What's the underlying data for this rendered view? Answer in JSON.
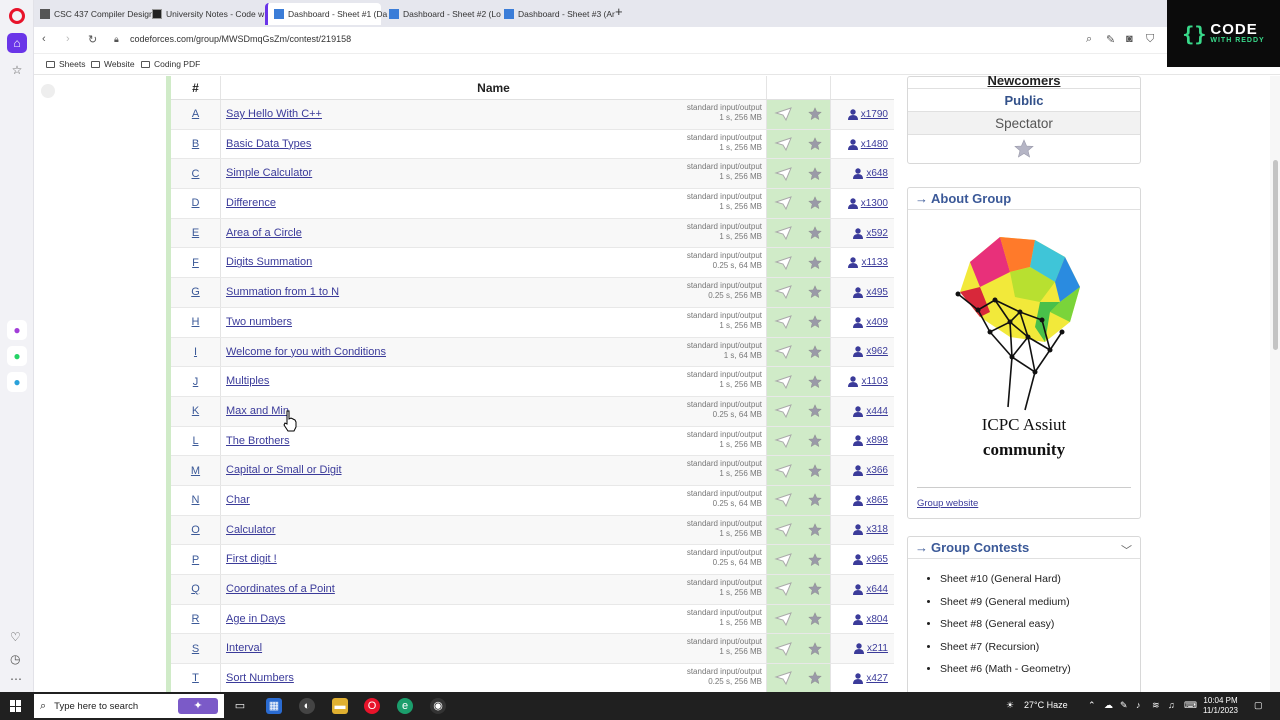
{
  "browser": {
    "tabs": [
      {
        "label": "CSC 437 Compiler Design",
        "color": "#555555"
      },
      {
        "label": "University Notes - Code w",
        "color": "#222222"
      },
      {
        "label": "Dashboard - Sheet #1 (Da",
        "color": "#3b7dd8"
      },
      {
        "label": "Dashboard - Sheet #2 (Lo",
        "color": "#3b7dd8"
      },
      {
        "label": "Dashboard - Sheet #3 (Ar",
        "color": "#3b7dd8"
      }
    ],
    "url": "codeforces.com/group/MWSDmqGsZm/contest/219158",
    "bookmarks": [
      "Sheets",
      "Website",
      "Coding PDF"
    ]
  },
  "logo": {
    "line1": "CODE",
    "line2": "WITH REDDY"
  },
  "table": {
    "col_id": "#",
    "col_name": "Name",
    "problems": [
      {
        "id": "A",
        "name": "Say Hello With C++",
        "io": "standard input/output",
        "limits": "1 s, 256 MB",
        "count": "x1790"
      },
      {
        "id": "B",
        "name": "Basic Data Types",
        "io": "standard input/output",
        "limits": "1 s, 256 MB",
        "count": "x1480"
      },
      {
        "id": "C",
        "name": "Simple Calculator",
        "io": "standard input/output",
        "limits": "1 s, 256 MB",
        "count": "x648"
      },
      {
        "id": "D",
        "name": "Difference",
        "io": "standard input/output",
        "limits": "1 s, 256 MB",
        "count": "x1300"
      },
      {
        "id": "E",
        "name": "Area of a Circle",
        "io": "standard input/output",
        "limits": "1 s, 256 MB",
        "count": "x592"
      },
      {
        "id": "F",
        "name": "Digits Summation",
        "io": "standard input/output",
        "limits": "0.25 s, 64 MB",
        "count": "x1133"
      },
      {
        "id": "G",
        "name": "Summation from 1 to N",
        "io": "standard input/output",
        "limits": "0.25 s, 256 MB",
        "count": "x495"
      },
      {
        "id": "H",
        "name": "Two numbers",
        "io": "standard input/output",
        "limits": "1 s, 256 MB",
        "count": "x409"
      },
      {
        "id": "I",
        "name": "Welcome for you with Conditions",
        "io": "standard input/output",
        "limits": "1 s, 64 MB",
        "count": "x962"
      },
      {
        "id": "J",
        "name": "Multiples",
        "io": "standard input/output",
        "limits": "1 s, 256 MB",
        "count": "x1103"
      },
      {
        "id": "K",
        "name": "Max and Min",
        "io": "standard input/output",
        "limits": "0.25 s, 64 MB",
        "count": "x444"
      },
      {
        "id": "L",
        "name": "The Brothers",
        "io": "standard input/output",
        "limits": "1 s, 256 MB",
        "count": "x898"
      },
      {
        "id": "M",
        "name": "Capital or Small or Digit",
        "io": "standard input/output",
        "limits": "1 s, 256 MB",
        "count": "x366"
      },
      {
        "id": "N",
        "name": "Char",
        "io": "standard input/output",
        "limits": "0.25 s, 64 MB",
        "count": "x865"
      },
      {
        "id": "O",
        "name": "Calculator",
        "io": "standard input/output",
        "limits": "1 s, 256 MB",
        "count": "x318"
      },
      {
        "id": "P",
        "name": "First digit !",
        "io": "standard input/output",
        "limits": "0.25 s, 64 MB",
        "count": "x965"
      },
      {
        "id": "Q",
        "name": "Coordinates of a Point",
        "io": "standard input/output",
        "limits": "1 s, 256 MB",
        "count": "x644"
      },
      {
        "id": "R",
        "name": "Age in Days",
        "io": "standard input/output",
        "limits": "1 s, 256 MB",
        "count": "x804"
      },
      {
        "id": "S",
        "name": "Interval",
        "io": "standard input/output",
        "limits": "1 s, 256 MB",
        "count": "x211"
      },
      {
        "id": "T",
        "name": "Sort Numbers",
        "io": "standard input/output",
        "limits": "0.25 s, 256 MB",
        "count": "x427"
      }
    ]
  },
  "sidebar": {
    "registration": {
      "newcomers": "Newcomers",
      "public": "Public",
      "spectator": "Spectator"
    },
    "about": {
      "title": "About Group",
      "caption_line1": "ICPC Assiut",
      "caption_line2": "community",
      "link": "Group website"
    },
    "contests": {
      "title": "Group Contests",
      "items": [
        "Sheet #10 (General Hard)",
        "Sheet #9 (General medium)",
        "Sheet #8 (General easy)",
        "Sheet #7 (Recursion)",
        "Sheet #6 (Math - Geometry)"
      ]
    }
  },
  "taskbar": {
    "search_placeholder": "Type here to search",
    "weather": "27°C  Haze",
    "time": "10:04 PM",
    "date": "11/1/2023"
  }
}
